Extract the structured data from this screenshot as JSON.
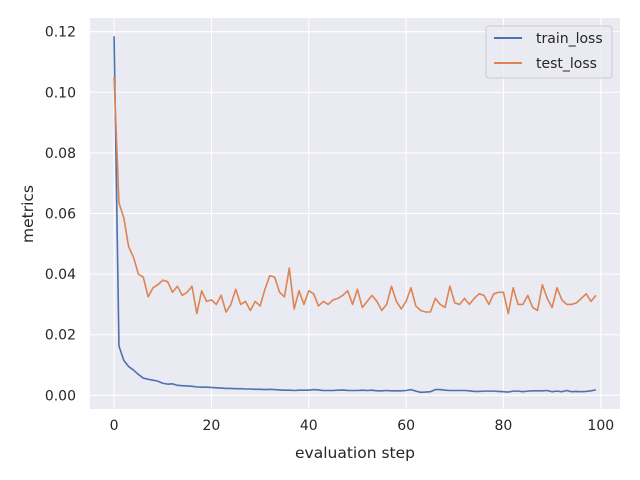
{
  "chart_data": {
    "type": "line",
    "xlabel": "evaluation step",
    "ylabel": "metrics",
    "xlim": [
      -4.95,
      103.95
    ],
    "ylim": [
      -0.0045,
      0.1245
    ],
    "xticks": [
      0,
      20,
      40,
      60,
      80,
      100
    ],
    "yticks": [
      0.0,
      0.02,
      0.04,
      0.06,
      0.08,
      0.1,
      0.12
    ],
    "ytick_labels": [
      "0.00",
      "0.02",
      "0.04",
      "0.06",
      "0.08",
      "0.10",
      "0.12"
    ],
    "grid": true,
    "legend_position": "top-right",
    "background": "#eaeaf2",
    "series": [
      {
        "name": "train_loss",
        "color": "#4c72b0",
        "x": [
          0,
          1,
          2,
          3,
          4,
          5,
          6,
          7,
          8,
          9,
          10,
          11,
          12,
          13,
          14,
          15,
          16,
          17,
          18,
          19,
          20,
          21,
          22,
          23,
          24,
          25,
          26,
          27,
          28,
          29,
          30,
          31,
          32,
          33,
          34,
          35,
          36,
          37,
          38,
          39,
          40,
          41,
          42,
          43,
          44,
          45,
          46,
          47,
          48,
          49,
          50,
          51,
          52,
          53,
          54,
          55,
          56,
          57,
          58,
          59,
          60,
          61,
          62,
          63,
          64,
          65,
          66,
          67,
          68,
          69,
          70,
          71,
          72,
          73,
          74,
          75,
          76,
          77,
          78,
          79,
          80,
          81,
          82,
          83,
          84,
          85,
          86,
          87,
          88,
          89,
          90,
          91,
          92,
          93,
          94,
          95,
          96,
          97,
          98,
          99
        ],
        "values": [
          0.1185,
          0.0163,
          0.0115,
          0.0095,
          0.0083,
          0.0069,
          0.0057,
          0.0053,
          0.005,
          0.0047,
          0.004,
          0.0037,
          0.0038,
          0.0033,
          0.0032,
          0.0031,
          0.003,
          0.0028,
          0.0027,
          0.0027,
          0.0026,
          0.0025,
          0.0024,
          0.0023,
          0.0023,
          0.0022,
          0.0022,
          0.0021,
          0.0021,
          0.002,
          0.002,
          0.0019,
          0.002,
          0.0019,
          0.0018,
          0.0017,
          0.0017,
          0.0016,
          0.0017,
          0.0017,
          0.0017,
          0.0019,
          0.0018,
          0.0016,
          0.0016,
          0.0016,
          0.0017,
          0.0018,
          0.0016,
          0.0016,
          0.0016,
          0.0017,
          0.0016,
          0.0017,
          0.0015,
          0.0015,
          0.0016,
          0.0015,
          0.0015,
          0.0015,
          0.0016,
          0.0019,
          0.0014,
          0.001,
          0.0011,
          0.0012,
          0.0019,
          0.0019,
          0.0017,
          0.0016,
          0.0016,
          0.0016,
          0.0016,
          0.0015,
          0.0013,
          0.0013,
          0.0014,
          0.0014,
          0.0014,
          0.0013,
          0.0012,
          0.0011,
          0.0014,
          0.0014,
          0.0012,
          0.0014,
          0.0015,
          0.0015,
          0.0015,
          0.0016,
          0.0012,
          0.0014,
          0.0012,
          0.0016,
          0.0012,
          0.0013,
          0.0012,
          0.0013,
          0.0015,
          0.0018
        ]
      },
      {
        "name": "test_loss",
        "color": "#dd8452",
        "x": [
          0,
          1,
          2,
          3,
          4,
          5,
          6,
          7,
          8,
          9,
          10,
          11,
          12,
          13,
          14,
          15,
          16,
          17,
          18,
          19,
          20,
          21,
          22,
          23,
          24,
          25,
          26,
          27,
          28,
          29,
          30,
          31,
          32,
          33,
          34,
          35,
          36,
          37,
          38,
          39,
          40,
          41,
          42,
          43,
          44,
          45,
          46,
          47,
          48,
          49,
          50,
          51,
          52,
          53,
          54,
          55,
          56,
          57,
          58,
          59,
          60,
          61,
          62,
          63,
          64,
          65,
          66,
          67,
          68,
          69,
          70,
          71,
          72,
          73,
          74,
          75,
          76,
          77,
          78,
          79,
          80,
          81,
          82,
          83,
          84,
          85,
          86,
          87,
          88,
          89,
          90,
          91,
          92,
          93,
          94,
          95,
          96,
          97,
          98,
          99
        ],
        "values": [
          0.105,
          0.0635,
          0.0585,
          0.049,
          0.0455,
          0.04,
          0.039,
          0.0325,
          0.0355,
          0.0365,
          0.038,
          0.0375,
          0.034,
          0.036,
          0.033,
          0.034,
          0.036,
          0.027,
          0.0345,
          0.031,
          0.0315,
          0.03,
          0.033,
          0.0275,
          0.03,
          0.035,
          0.03,
          0.031,
          0.028,
          0.031,
          0.0295,
          0.035,
          0.0395,
          0.039,
          0.034,
          0.0325,
          0.042,
          0.0285,
          0.0345,
          0.03,
          0.0345,
          0.0335,
          0.0295,
          0.031,
          0.03,
          0.0315,
          0.032,
          0.033,
          0.0345,
          0.03,
          0.035,
          0.029,
          0.031,
          0.033,
          0.031,
          0.028,
          0.03,
          0.036,
          0.031,
          0.0285,
          0.031,
          0.0355,
          0.0295,
          0.028,
          0.0275,
          0.0275,
          0.032,
          0.03,
          0.029,
          0.036,
          0.0305,
          0.03,
          0.032,
          0.03,
          0.032,
          0.0335,
          0.033,
          0.03,
          0.0335,
          0.034,
          0.034,
          0.027,
          0.0355,
          0.03,
          0.03,
          0.033,
          0.029,
          0.028,
          0.0365,
          0.032,
          0.029,
          0.0355,
          0.0315,
          0.03,
          0.03,
          0.0305,
          0.032,
          0.0335,
          0.031,
          0.033
        ]
      }
    ]
  }
}
